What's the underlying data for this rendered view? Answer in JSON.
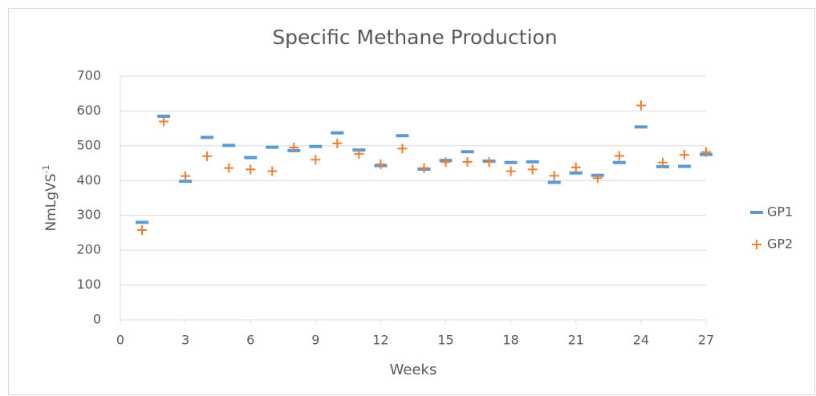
{
  "chart_data": {
    "type": "scatter",
    "title": "Specific Methane Production",
    "x_label": "Weeks",
    "y_label": "NmLgVS",
    "y_label_sup": "-1",
    "x": [
      1,
      2,
      3,
      4,
      5,
      6,
      7,
      8,
      9,
      10,
      11,
      12,
      13,
      14,
      15,
      16,
      17,
      18,
      19,
      20,
      21,
      22,
      23,
      24,
      25,
      26,
      27
    ],
    "series": [
      {
        "name": "GP1",
        "color": "#5b9bd5",
        "marker": "dash",
        "values": [
          280,
          585,
          398,
          524,
          501,
          466,
          496,
          486,
          498,
          537,
          488,
          443,
          529,
          433,
          458,
          483,
          456,
          452,
          454,
          395,
          422,
          415,
          452,
          554,
          440,
          441,
          475
        ]
      },
      {
        "name": "GP2",
        "color": "#ed7d31",
        "marker": "plus",
        "values": [
          258,
          570,
          413,
          470,
          436,
          432,
          427,
          495,
          460,
          507,
          477,
          447,
          492,
          436,
          453,
          454,
          453,
          427,
          432,
          414,
          438,
          407,
          471,
          616,
          452,
          474,
          482
        ]
      }
    ],
    "xlim": [
      0,
      27
    ],
    "xticks": [
      0,
      3,
      6,
      9,
      12,
      15,
      18,
      21,
      24,
      27
    ],
    "ylim": [
      0,
      700
    ],
    "yticks": [
      0,
      100,
      200,
      300,
      400,
      500,
      600,
      700
    ],
    "grid": true,
    "legend": "right"
  }
}
